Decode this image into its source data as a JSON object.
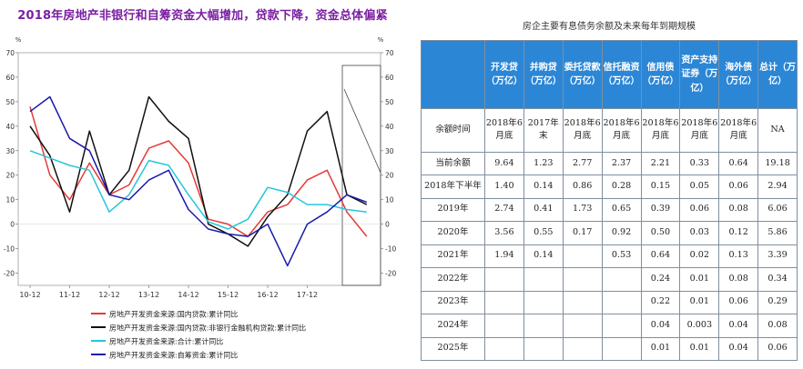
{
  "chart_data": {
    "type": "line",
    "title": "2018年房地产非银行和自筹资金大幅增加，贷款下降，资金总体偏紧",
    "left_axis": {
      "unit": "%",
      "ylim": [
        -25,
        70
      ],
      "ticks": [
        70,
        60,
        50,
        40,
        30,
        20,
        10,
        0,
        -10,
        -20
      ]
    },
    "right_axis": {
      "unit": "%",
      "ylim": [
        -25,
        70
      ],
      "ticks": [
        70,
        60,
        50,
        40,
        30,
        20,
        10,
        0,
        -10,
        -20
      ]
    },
    "x_ticks": [
      "10-12",
      "11-12",
      "12-12",
      "13-12",
      "14-12",
      "15-12",
      "16-12",
      "17-12"
    ],
    "x": [
      2010.0,
      2010.5,
      2011.0,
      2011.5,
      2012.0,
      2012.5,
      2013.0,
      2013.5,
      2014.0,
      2014.5,
      2015.0,
      2015.5,
      2016.0,
      2016.5,
      2017.0,
      2017.5,
      2018.0,
      2018.5
    ],
    "series": [
      {
        "name": "房地产开发资金来源:国内贷款:累计同比",
        "color": "#e53935",
        "axis": "left",
        "values": [
          48,
          20,
          10,
          25,
          12,
          16,
          31,
          34,
          25,
          2,
          0,
          -5,
          5,
          8,
          18,
          22,
          5,
          -5
        ]
      },
      {
        "name": "房地产开发资金来源:国内贷款:非银行金融机构贷款:累计同比",
        "color": "#111111",
        "axis": "right",
        "values": [
          40,
          28,
          5,
          38,
          12,
          22,
          52,
          42,
          35,
          0,
          -4,
          -9,
          3,
          12,
          38,
          46,
          12,
          8
        ]
      },
      {
        "name": "房地产开发资金来源:合计:累计同比",
        "color": "#26c6da",
        "axis": "left",
        "values": [
          30,
          27,
          24,
          22,
          5,
          12,
          26,
          24,
          12,
          1,
          -2,
          2,
          15,
          13,
          8,
          8,
          6,
          5
        ]
      },
      {
        "name": "房地产开发资金来源:自筹资金:累计同比",
        "color": "#1a1aaa",
        "axis": "left",
        "values": [
          46,
          52,
          35,
          30,
          12,
          10,
          18,
          22,
          6,
          -2,
          -4,
          -5,
          0,
          -17,
          0,
          5,
          12,
          9
        ]
      }
    ],
    "legend_position": "bottom"
  },
  "table": {
    "title": "房企主要有息债务余额及未来每年到期规模",
    "columns": [
      "开发贷（万亿）",
      "并购贷（万亿）",
      "委托贷款（万亿）",
      "信托融资（万亿）",
      "信用债（万亿）",
      "资产支持证券（万亿）",
      "海外债（万亿）",
      "总计（万亿）"
    ],
    "rows": [
      {
        "label": "余额时间",
        "cells": [
          "2018年6月底",
          "2017年末",
          "2018年6月底",
          "2018年6月底",
          "2018年6月底",
          "2018年6月底",
          "2018年6月底",
          "NA"
        ]
      },
      {
        "label": "当前余额",
        "cells": [
          "9.64",
          "1.23",
          "2.77",
          "2.37",
          "2.21",
          "0.33",
          "0.64",
          "19.18"
        ]
      },
      {
        "label": "2018年下半年",
        "cells": [
          "1.40",
          "0.14",
          "0.86",
          "0.28",
          "0.15",
          "0.05",
          "0.06",
          "2.94"
        ]
      },
      {
        "label": "2019年",
        "cells": [
          "2.74",
          "0.41",
          "1.73",
          "0.65",
          "0.39",
          "0.06",
          "0.08",
          "6.06"
        ]
      },
      {
        "label": "2020年",
        "cells": [
          "3.56",
          "0.55",
          "0.17",
          "0.92",
          "0.50",
          "0.03",
          "0.12",
          "5.86"
        ]
      },
      {
        "label": "2021年",
        "cells": [
          "1.94",
          "0.14",
          "",
          "0.53",
          "0.64",
          "0.02",
          "0.13",
          "3.39"
        ]
      },
      {
        "label": "2022年",
        "cells": [
          "",
          "",
          "",
          "",
          "0.24",
          "0.01",
          "0.08",
          "0.34"
        ]
      },
      {
        "label": "2023年",
        "cells": [
          "",
          "",
          "",
          "",
          "0.22",
          "0.01",
          "0.06",
          "0.29"
        ]
      },
      {
        "label": "2024年",
        "cells": [
          "",
          "",
          "",
          "",
          "0.04",
          "0.003",
          "0.04",
          "0.08"
        ]
      },
      {
        "label": "2025年",
        "cells": [
          "",
          "",
          "",
          "",
          "0.01",
          "0.01",
          "0.04",
          "0.06"
        ]
      }
    ]
  }
}
